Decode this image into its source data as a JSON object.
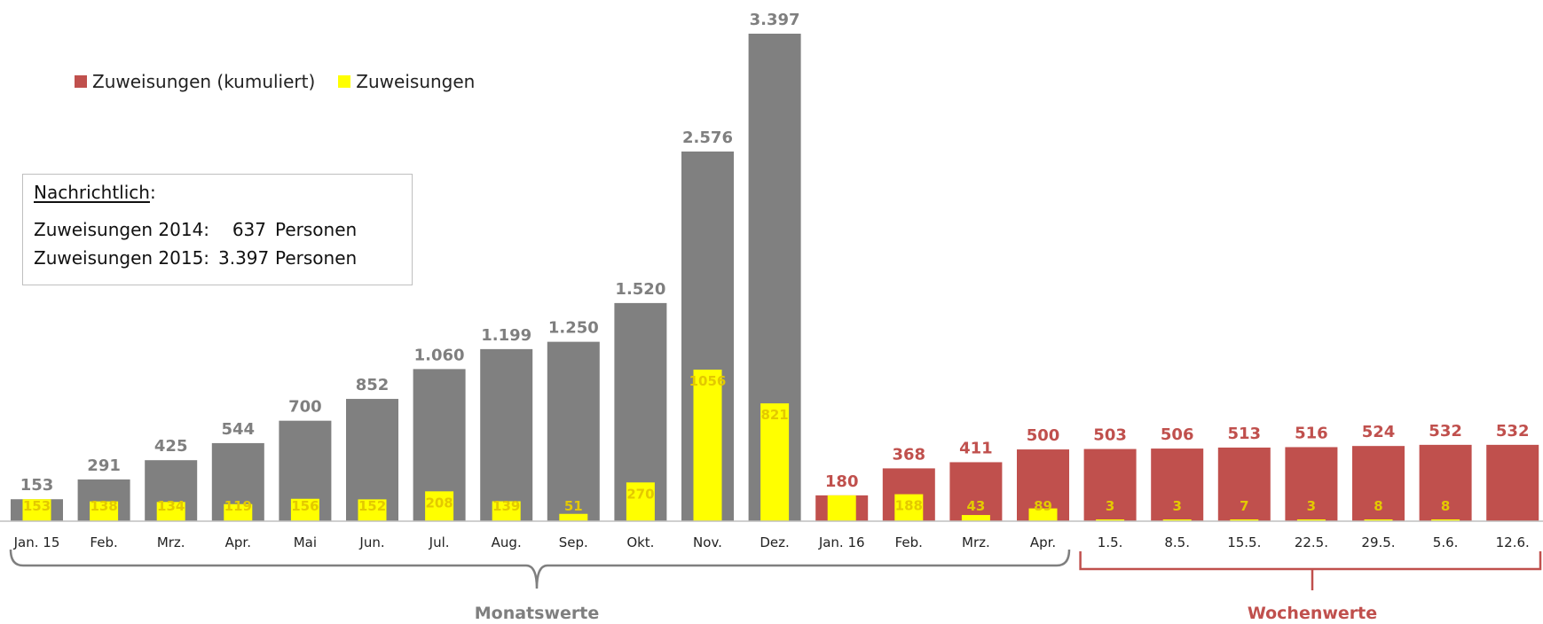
{
  "colors": {
    "monthly_cumulative": "#808080",
    "weekly_cumulative": "#c0504d",
    "assignments": "#ffff00",
    "monthly_label": "#7f7f7f",
    "weekly_label": "#c0504d",
    "inner_label": "#e3c900"
  },
  "legend": {
    "cumulative": "Zuweisungen (kumuliert)",
    "single": "Zuweisungen"
  },
  "note": {
    "heading": "Nachrichtlich",
    "colon": ":",
    "row1_label": "Zuweisungen 2014:",
    "row1_value": "637",
    "row1_unit": "Personen",
    "row2_label": "Zuweisungen 2015:",
    "row2_value": "3.397",
    "row2_unit": "Personen"
  },
  "chart_data": {
    "type": "bar",
    "categories": [
      "Jan. 15",
      "Feb.",
      "Mrz.",
      "Apr.",
      "Mai",
      "Jun.",
      "Jul.",
      "Aug.",
      "Sep.",
      "Okt.",
      "Nov.",
      "Dez.",
      "Jan. 16",
      "Feb.",
      "Mrz.",
      "Apr.",
      "1.5.",
      "8.5.",
      "15.5.",
      "22.5.",
      "29.5.",
      "5.6.",
      "12.6."
    ],
    "series": [
      {
        "name": "Zuweisungen (kumuliert)",
        "values": [
          153,
          291,
          425,
          544,
          700,
          852,
          1060,
          1199,
          1250,
          1520,
          2576,
          3397,
          180,
          368,
          411,
          500,
          503,
          506,
          513,
          516,
          524,
          532,
          532
        ],
        "labels": [
          "153",
          "291",
          "425",
          "544",
          "700",
          "852",
          "1.060",
          "1.199",
          "1.250",
          "1.520",
          "2.576",
          "3.397",
          "180",
          "368",
          "411",
          "500",
          "503",
          "506",
          "513",
          "516",
          "524",
          "532",
          "532"
        ]
      },
      {
        "name": "Zuweisungen",
        "values": [
          153,
          138,
          134,
          119,
          156,
          152,
          208,
          139,
          51,
          270,
          1056,
          821,
          180,
          188,
          43,
          89,
          3,
          3,
          7,
          3,
          8,
          8,
          null
        ],
        "labels": [
          "153",
          "138",
          "134",
          "119",
          "156",
          "152",
          "208",
          "139",
          "51",
          "270",
          "1056",
          "821",
          "",
          "188",
          "43",
          "89",
          "3",
          "3",
          "7",
          "3",
          "8",
          "8",
          ""
        ]
      }
    ],
    "period": [
      "m",
      "m",
      "m",
      "m",
      "m",
      "m",
      "m",
      "m",
      "m",
      "m",
      "m",
      "m",
      "m",
      "m",
      "m",
      "m",
      "w",
      "w",
      "w",
      "w",
      "w",
      "w",
      "w"
    ],
    "ylim": [
      0,
      3397
    ],
    "grid": false,
    "legend_position": "top-left",
    "groups": [
      {
        "label": "Monatswerte",
        "from": 0,
        "to": 15
      },
      {
        "label": "Wochenwerte",
        "from": 16,
        "to": 22
      }
    ]
  }
}
